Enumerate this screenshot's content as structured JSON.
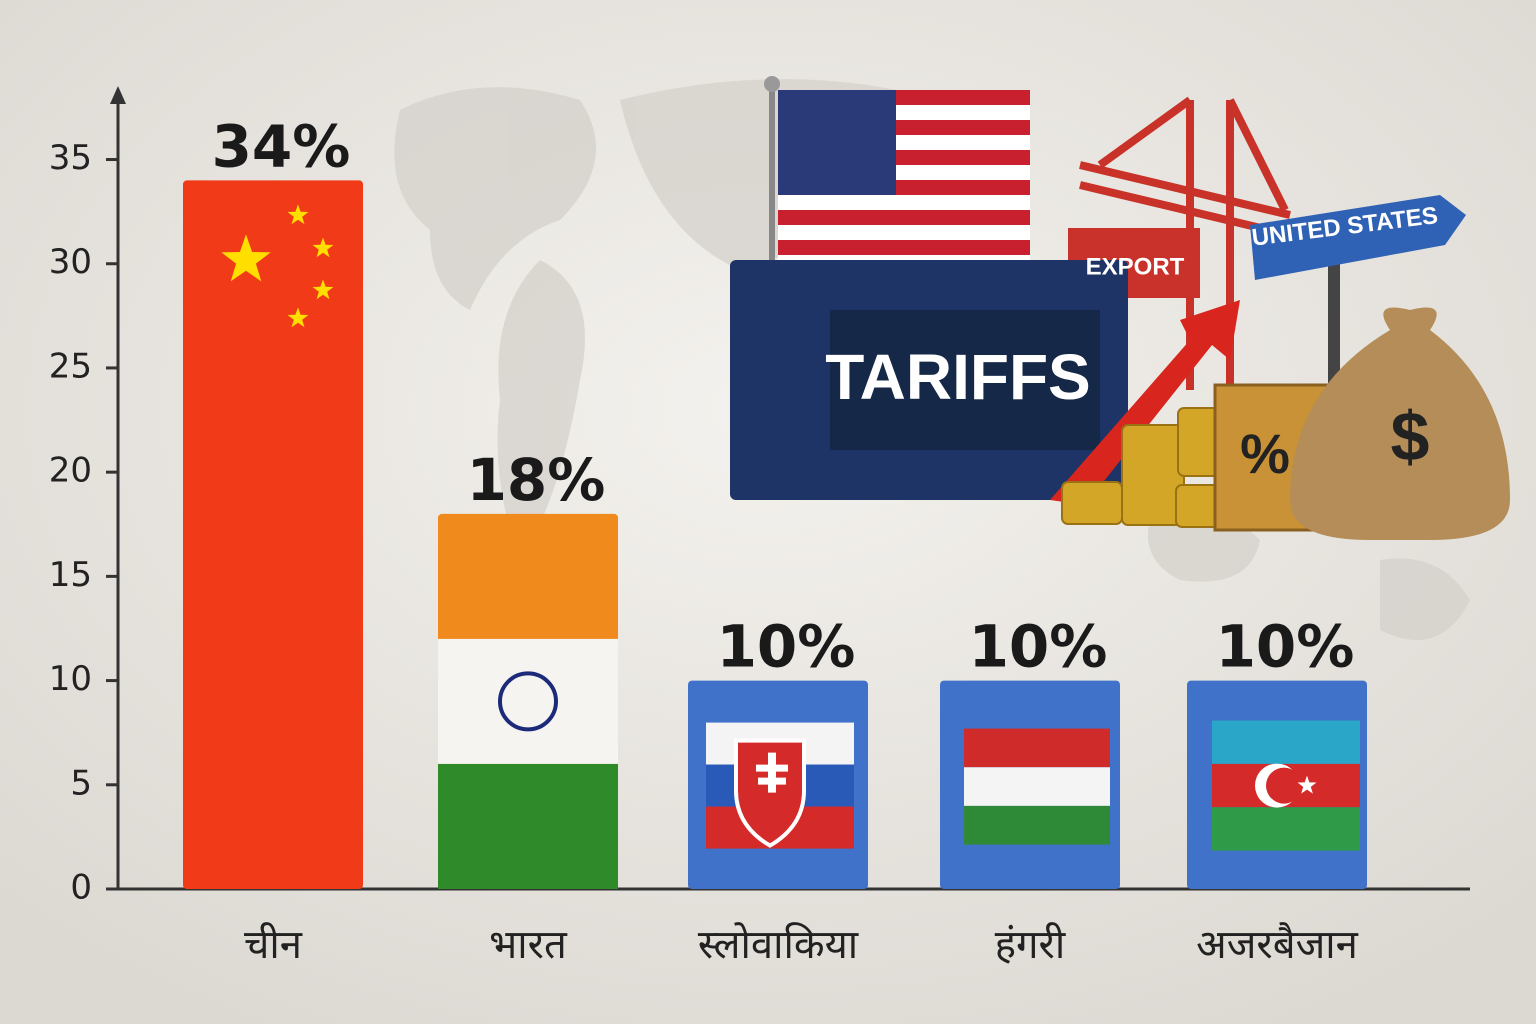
{
  "chart_data": {
    "type": "bar",
    "categories": [
      "चीन",
      "भारत",
      "स्लोवाकिया",
      "हंगरी",
      "अजरबैजान"
    ],
    "values": [
      34,
      18,
      10,
      10,
      10
    ],
    "value_labels": [
      "34%",
      "18%",
      "10%",
      "10%",
      "10%"
    ],
    "colors": [
      "#f03a18",
      "#f08a1c",
      "#3f72c8",
      "#3f72c8",
      "#3f72c8"
    ],
    "ylim": [
      0,
      38
    ],
    "yticks": [
      0,
      5,
      10,
      15,
      20,
      25,
      30,
      35
    ],
    "annotations": [
      "TARIFFS",
      "EXPORT",
      "UNITED STATES",
      "%",
      "$"
    ]
  }
}
